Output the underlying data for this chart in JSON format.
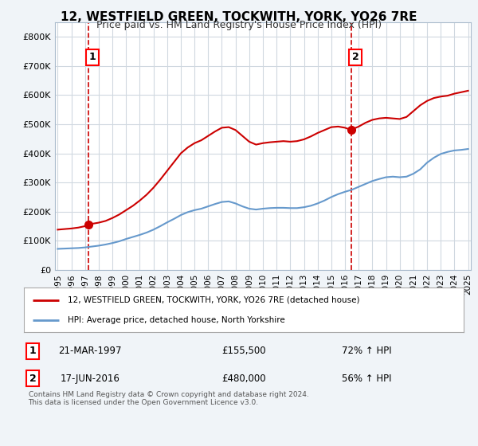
{
  "title": "12, WESTFIELD GREEN, TOCKWITH, YORK, YO26 7RE",
  "subtitle": "Price paid vs. HM Land Registry's House Price Index (HPI)",
  "legend_line1": "12, WESTFIELD GREEN, TOCKWITH, YORK, YO26 7RE (detached house)",
  "legend_line2": "HPI: Average price, detached house, North Yorkshire",
  "transaction1_label": "1",
  "transaction1_date": "21-MAR-1997",
  "transaction1_price": "£155,500",
  "transaction1_hpi": "72% ↑ HPI",
  "transaction2_label": "2",
  "transaction2_date": "17-JUN-2016",
  "transaction2_price": "£480,000",
  "transaction2_hpi": "56% ↑ HPI",
  "copyright": "Contains HM Land Registry data © Crown copyright and database right 2024.\nThis data is licensed under the Open Government Licence v3.0.",
  "background_color": "#f0f4f8",
  "plot_bg_color": "#ffffff",
  "grid_color": "#d0d8e0",
  "red_line_color": "#cc0000",
  "blue_line_color": "#6699cc",
  "dashed_vline_color": "#cc0000",
  "marker_color": "#cc0000",
  "ylim": [
    0,
    850000
  ],
  "yticks": [
    0,
    100000,
    200000,
    300000,
    400000,
    500000,
    600000,
    700000,
    800000
  ],
  "ytick_labels": [
    "£0",
    "£100K",
    "£200K",
    "£300K",
    "£400K",
    "£500K",
    "£600K",
    "£700K",
    "£800K"
  ],
  "year_start": 1995,
  "year_end": 2025,
  "transaction1_year": 1997.22,
  "transaction1_value": 155500,
  "transaction2_year": 2016.46,
  "transaction2_value": 480000,
  "red_x": [
    1995.0,
    1995.5,
    1996.0,
    1996.5,
    1997.0,
    1997.22,
    1997.5,
    1998.0,
    1998.5,
    1999.0,
    1999.5,
    2000.0,
    2000.5,
    2001.0,
    2001.5,
    2002.0,
    2002.5,
    2003.0,
    2003.5,
    2004.0,
    2004.5,
    2005.0,
    2005.5,
    2006.0,
    2006.5,
    2007.0,
    2007.5,
    2008.0,
    2008.5,
    2009.0,
    2009.5,
    2010.0,
    2010.5,
    2011.0,
    2011.5,
    2012.0,
    2012.5,
    2013.0,
    2013.5,
    2014.0,
    2014.5,
    2015.0,
    2015.5,
    2016.0,
    2016.46,
    2016.5,
    2017.0,
    2017.5,
    2018.0,
    2018.5,
    2019.0,
    2019.5,
    2020.0,
    2020.5,
    2021.0,
    2021.5,
    2022.0,
    2022.5,
    2023.0,
    2023.5,
    2024.0,
    2024.5,
    2025.0
  ],
  "red_y": [
    138000,
    140000,
    142000,
    145000,
    150000,
    155500,
    158000,
    162000,
    168000,
    178000,
    190000,
    205000,
    220000,
    238000,
    258000,
    282000,
    310000,
    340000,
    370000,
    400000,
    420000,
    435000,
    445000,
    460000,
    475000,
    488000,
    490000,
    480000,
    460000,
    440000,
    430000,
    435000,
    438000,
    440000,
    442000,
    440000,
    442000,
    448000,
    458000,
    470000,
    480000,
    490000,
    492000,
    488000,
    480000,
    482000,
    492000,
    505000,
    515000,
    520000,
    522000,
    520000,
    518000,
    525000,
    545000,
    565000,
    580000,
    590000,
    595000,
    598000,
    605000,
    610000,
    615000
  ],
  "blue_x": [
    1995.0,
    1995.5,
    1996.0,
    1996.5,
    1997.0,
    1997.5,
    1998.0,
    1998.5,
    1999.0,
    1999.5,
    2000.0,
    2000.5,
    2001.0,
    2001.5,
    2002.0,
    2002.5,
    2003.0,
    2003.5,
    2004.0,
    2004.5,
    2005.0,
    2005.5,
    2006.0,
    2006.5,
    2007.0,
    2007.5,
    2008.0,
    2008.5,
    2009.0,
    2009.5,
    2010.0,
    2010.5,
    2011.0,
    2011.5,
    2012.0,
    2012.5,
    2013.0,
    2013.5,
    2014.0,
    2014.5,
    2015.0,
    2015.5,
    2016.0,
    2016.5,
    2017.0,
    2017.5,
    2018.0,
    2018.5,
    2019.0,
    2019.5,
    2020.0,
    2020.5,
    2021.0,
    2021.5,
    2022.0,
    2022.5,
    2023.0,
    2023.5,
    2024.0,
    2024.5,
    2025.0
  ],
  "blue_y": [
    72000,
    73000,
    74000,
    75000,
    77000,
    80000,
    83000,
    87000,
    92000,
    98000,
    106000,
    113000,
    120000,
    128000,
    138000,
    150000,
    163000,
    175000,
    188000,
    198000,
    205000,
    210000,
    218000,
    226000,
    233000,
    235000,
    228000,
    218000,
    210000,
    207000,
    210000,
    212000,
    213000,
    213000,
    212000,
    212000,
    215000,
    220000,
    228000,
    238000,
    250000,
    260000,
    268000,
    275000,
    285000,
    295000,
    305000,
    312000,
    318000,
    320000,
    318000,
    320000,
    330000,
    345000,
    368000,
    385000,
    398000,
    405000,
    410000,
    412000,
    415000
  ]
}
